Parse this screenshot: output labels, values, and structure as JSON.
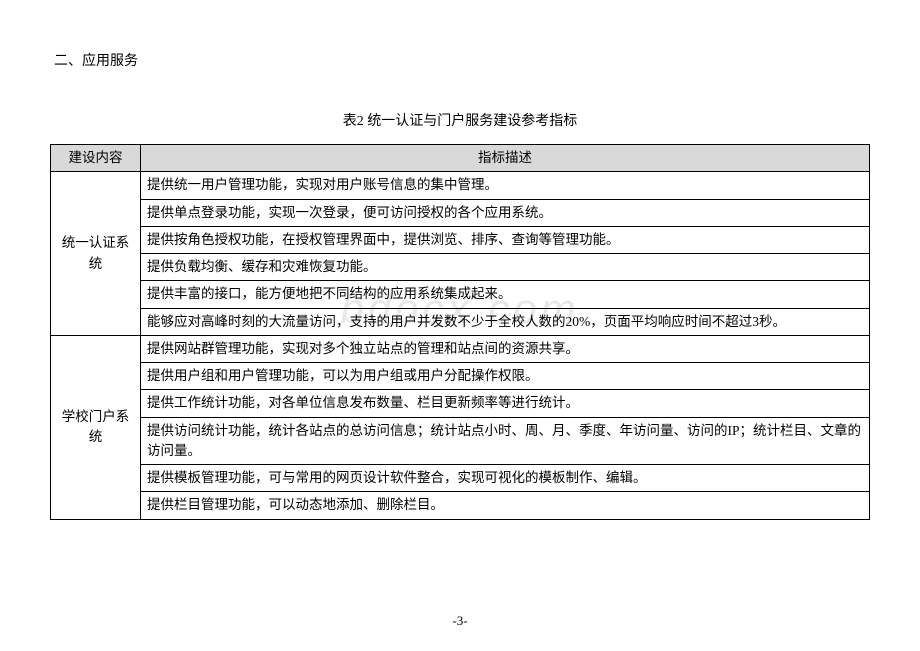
{
  "section_heading": "二、应用服务",
  "table_caption": "表2 统一认证与门户服务建设参考指标",
  "columns": {
    "col1": "建设内容",
    "col2": "指标描述"
  },
  "groups": [
    {
      "category": "统一认证系统",
      "rows": [
        "提供统一用户管理功能，实现对用户账号信息的集中管理。",
        "提供单点登录功能，实现一次登录，便可访问授权的各个应用系统。",
        "提供按角色授权功能，在授权管理界面中，提供浏览、排序、查询等管理功能。",
        "提供负载均衡、缓存和灾难恢复功能。",
        "提供丰富的接口，能方便地把不同结构的应用系统集成起来。",
        "能够应对高峰时刻的大流量访问，支持的用户并发数不少于全校人数的20%，页面平均响应时间不超过3秒。"
      ]
    },
    {
      "category": "学校门户系统",
      "rows": [
        "提供网站群管理功能，实现对多个独立站点的管理和站点间的资源共享。",
        "提供用户组和用户管理功能，可以为用户组或用户分配操作权限。",
        "提供工作统计功能，对各单位信息发布数量、栏目更新频率等进行统计。",
        "提供访问统计功能，统计各站点的总访问信息；统计站点小时、周、月、季度、年访问量、访问的IP；统计栏目、文章的访问量。",
        "提供模板管理功能，可与常用的网页设计软件整合，实现可视化的模板制作、编辑。",
        "提供栏目管理功能，可以动态地添加、删除栏目。"
      ]
    }
  ],
  "watermark": "bdocx.com",
  "page_number": "-3-"
}
